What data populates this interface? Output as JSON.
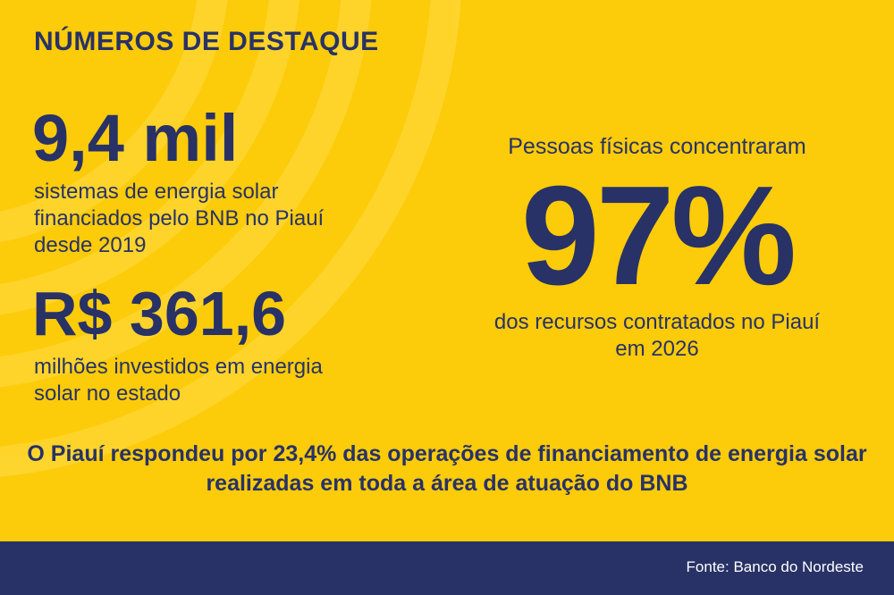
{
  "header": {
    "title": "NÚMEROS DE DESTAQUE"
  },
  "stats": [
    {
      "value": "9,4 mil",
      "description": "sistemas de energia solar financiados pelo BNB no Piauí desde 2019"
    },
    {
      "value": "R$ 361,6",
      "description": "milhões investidos em energia solar no estado"
    }
  ],
  "highlight_stat": {
    "intro": "Pessoas físicas concentraram",
    "value": "97%",
    "percent": 97,
    "description": "dos recursos contratados no Piauí em 2026"
  },
  "summary": "O Piauí respondeu por 23,4% das operações de financiamento de energia solar realizadas em toda a área de atuação do BNB",
  "footer": {
    "source": "Fonte: Banco do Nordeste"
  },
  "colors": {
    "background": "#FCCB0A",
    "text": "#283266",
    "footer_bg": "#283266",
    "footer_text": "#FFFFFF"
  }
}
